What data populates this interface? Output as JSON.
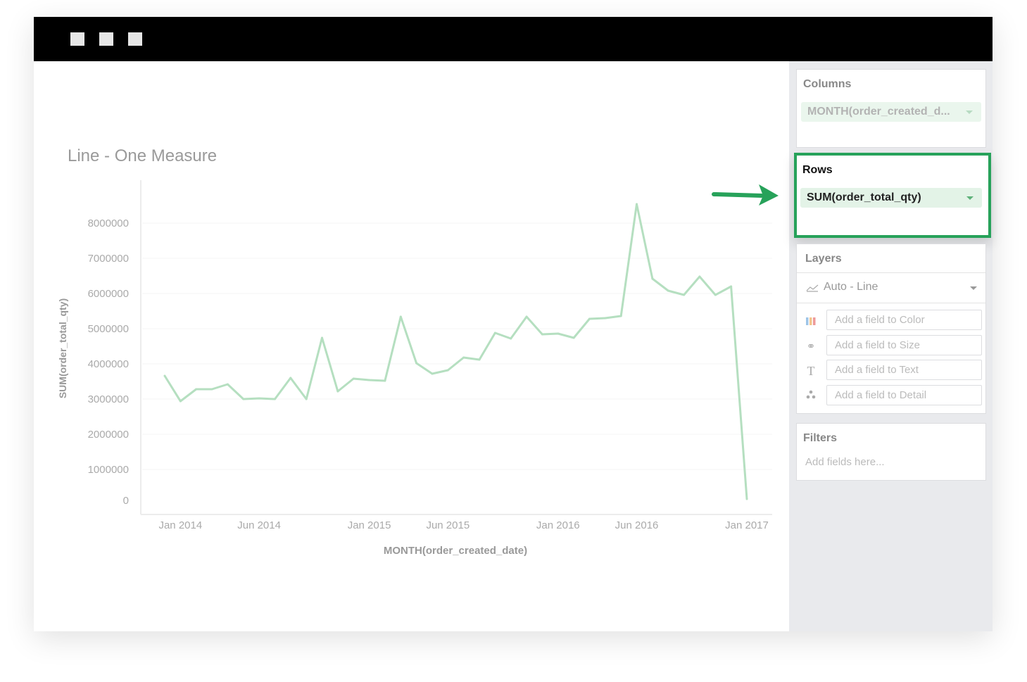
{
  "window": {
    "controls": [
      "window-control-1",
      "window-control-2",
      "window-control-3"
    ]
  },
  "sidebar": {
    "columns": {
      "title": "Columns",
      "field": "MONTH(order_created_d..."
    },
    "rows": {
      "title": "Rows",
      "field": "SUM(order_total_qty)",
      "highlight_color": "#27a25a"
    },
    "layers": {
      "title": "Layers",
      "mark_type": "Auto - Line",
      "encodings": [
        {
          "icon": "color-palette-icon",
          "placeholder": "Add a field to Color"
        },
        {
          "icon": "size-icon",
          "placeholder": "Add a field to Size"
        },
        {
          "icon": "text-icon",
          "placeholder": "Add a field to Text"
        },
        {
          "icon": "detail-icon",
          "placeholder": "Add a field to Detail"
        }
      ]
    },
    "filters": {
      "title": "Filters",
      "placeholder": "Add fields here..."
    }
  },
  "chart_data": {
    "type": "line",
    "title": "Line - One Measure",
    "xlabel": "MONTH(order_created_date)",
    "ylabel": "SUM(order_total_qty)",
    "ylim": [
      0,
      8000000
    ],
    "yticks": [
      "0",
      "1000000",
      "2000000",
      "3000000",
      "4000000",
      "5000000",
      "6000000",
      "7000000",
      "8000000"
    ],
    "xticks": [
      {
        "label": "Jan 2014",
        "index": 1
      },
      {
        "label": "Jun 2014",
        "index": 6
      },
      {
        "label": "Jan 2015",
        "index": 13
      },
      {
        "label": "Jun 2015",
        "index": 18
      },
      {
        "label": "Jan 2016",
        "index": 25
      },
      {
        "label": "Jun 2016",
        "index": 30
      },
      {
        "label": "Jan 2017",
        "index": 37
      }
    ],
    "x": [
      "2013-12",
      "2014-01",
      "2014-02",
      "2014-03",
      "2014-04",
      "2014-05",
      "2014-06",
      "2014-07",
      "2014-08",
      "2014-09",
      "2014-10",
      "2014-11",
      "2014-12",
      "2015-01",
      "2015-02",
      "2015-03",
      "2015-04",
      "2015-05",
      "2015-06",
      "2015-07",
      "2015-08",
      "2015-09",
      "2015-10",
      "2015-11",
      "2015-12",
      "2016-01",
      "2016-02",
      "2016-03",
      "2016-04",
      "2016-05",
      "2016-06",
      "2016-07",
      "2016-08",
      "2016-09",
      "2016-10",
      "2016-11",
      "2016-12",
      "2017-01"
    ],
    "values": [
      3660000,
      2940000,
      3280000,
      3280000,
      3420000,
      3000000,
      3020000,
      3000000,
      3600000,
      3000000,
      4740000,
      3220000,
      3580000,
      3540000,
      3520000,
      5340000,
      4020000,
      3720000,
      3820000,
      4180000,
      4120000,
      4880000,
      4720000,
      5340000,
      4840000,
      4860000,
      4740000,
      5280000,
      5300000,
      5360000,
      8540000,
      6420000,
      6080000,
      5960000,
      6480000,
      5960000,
      6200000,
      160000
    ],
    "line_color": "#b5dfc0",
    "grid": true
  }
}
